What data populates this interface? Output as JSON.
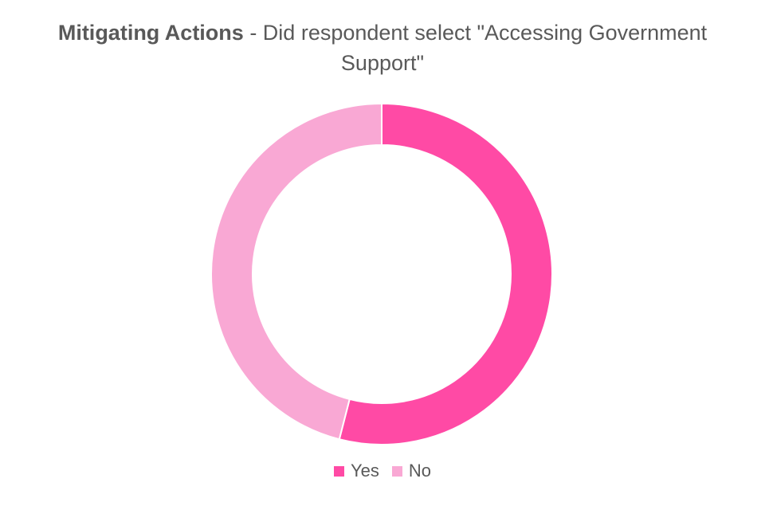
{
  "title": {
    "bold": "Mitigating Actions",
    "rest": " - Did respondent select \"Accessing Government Support\""
  },
  "chart_data": {
    "type": "pie",
    "variant": "donut",
    "categories": [
      "Yes",
      "No"
    ],
    "values": [
      54,
      46
    ],
    "unit": "%",
    "colors": [
      "#FF4AA5",
      "#F9A8D4"
    ],
    "legend_position": "bottom",
    "data_labels": false
  },
  "legend": {
    "items": [
      {
        "label": "Yes",
        "color": "#FF4AA5"
      },
      {
        "label": "No",
        "color": "#F9A8D4"
      }
    ]
  }
}
